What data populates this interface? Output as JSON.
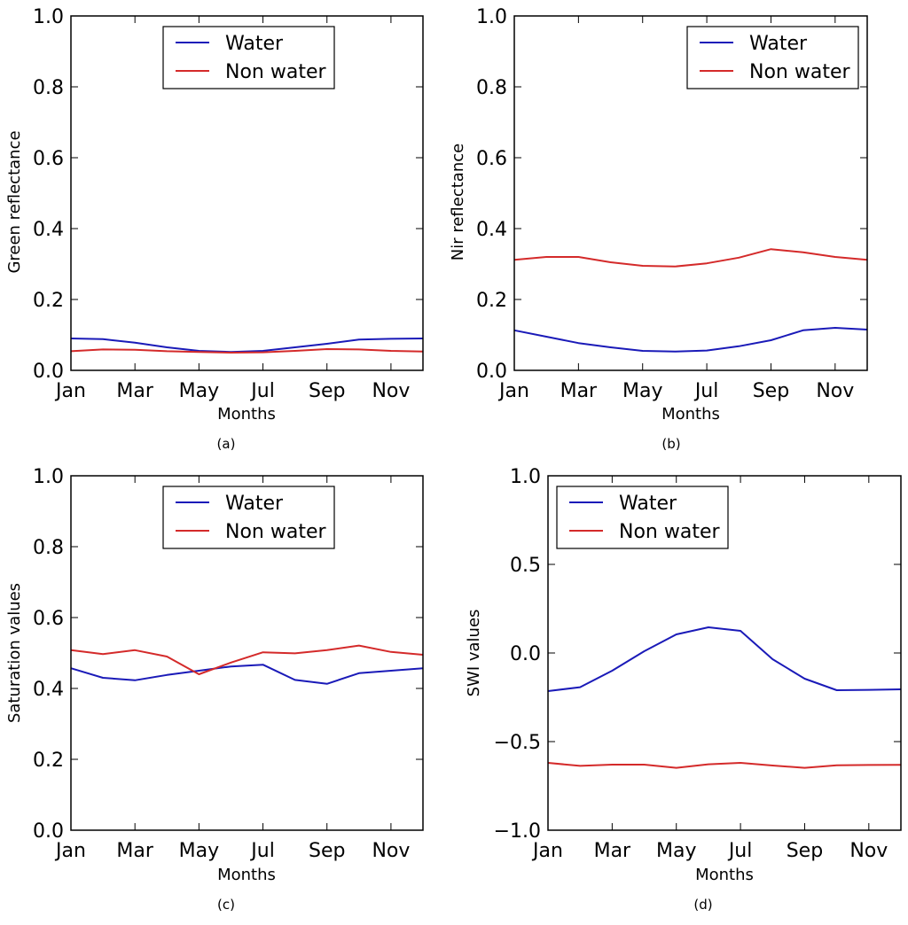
{
  "colors": {
    "water": "#1a1ab8",
    "non_water": "#d42a2a"
  },
  "chart_data": [
    {
      "type": "line",
      "caption": "(a)",
      "title": "",
      "xlabel": "Months",
      "ylabel": "Green reflectance",
      "x": [
        0,
        1,
        2,
        3,
        4,
        5,
        6,
        7,
        8,
        9,
        10,
        11
      ],
      "xlim": [
        0,
        11
      ],
      "xticks": [
        0,
        2,
        4,
        6,
        8,
        10
      ],
      "xtick_labels": [
        "Jan",
        "Mar",
        "May",
        "Jul",
        "Sep",
        "Nov"
      ],
      "ylim": [
        0.0,
        1.0
      ],
      "yticks": [
        0.0,
        0.2,
        0.4,
        0.6,
        0.8,
        1.0
      ],
      "ytick_labels": [
        "0.0",
        "0.2",
        "0.4",
        "0.6",
        "0.8",
        "1.0"
      ],
      "legend_position": "top-center",
      "series": [
        {
          "name": "Water",
          "color_key": "water",
          "values": [
            0.09,
            0.088,
            0.078,
            0.065,
            0.055,
            0.052,
            0.055,
            0.065,
            0.075,
            0.087,
            0.089,
            0.09
          ]
        },
        {
          "name": "Non water",
          "color_key": "non_water",
          "values": [
            0.054,
            0.059,
            0.058,
            0.054,
            0.052,
            0.05,
            0.051,
            0.055,
            0.06,
            0.059,
            0.055,
            0.053
          ]
        }
      ]
    },
    {
      "type": "line",
      "caption": "(b)",
      "title": "",
      "xlabel": "Months",
      "ylabel": "Nir reflectance",
      "x": [
        0,
        1,
        2,
        3,
        4,
        5,
        6,
        7,
        8,
        9,
        10,
        11
      ],
      "xlim": [
        0,
        11
      ],
      "xticks": [
        0,
        2,
        4,
        6,
        8,
        10
      ],
      "xtick_labels": [
        "Jan",
        "Mar",
        "May",
        "Jul",
        "Sep",
        "Nov"
      ],
      "ylim": [
        0.0,
        1.0
      ],
      "yticks": [
        0.0,
        0.2,
        0.4,
        0.6,
        0.8,
        1.0
      ],
      "ytick_labels": [
        "0.0",
        "0.2",
        "0.4",
        "0.6",
        "0.8",
        "1.0"
      ],
      "legend_position": "top-right",
      "series": [
        {
          "name": "Water",
          "color_key": "water",
          "values": [
            0.113,
            0.095,
            0.077,
            0.065,
            0.055,
            0.053,
            0.056,
            0.068,
            0.085,
            0.113,
            0.12,
            0.115
          ]
        },
        {
          "name": "Non water",
          "color_key": "non_water",
          "values": [
            0.312,
            0.32,
            0.32,
            0.305,
            0.295,
            0.293,
            0.302,
            0.318,
            0.342,
            0.333,
            0.32,
            0.312
          ]
        }
      ]
    },
    {
      "type": "line",
      "caption": "(c)",
      "title": "",
      "xlabel": "Months",
      "ylabel": "Saturation values",
      "x": [
        0,
        1,
        2,
        3,
        4,
        5,
        6,
        7,
        8,
        9,
        10,
        11
      ],
      "xlim": [
        0,
        11
      ],
      "xticks": [
        0,
        2,
        4,
        6,
        8,
        10
      ],
      "xtick_labels": [
        "Jan",
        "Mar",
        "May",
        "Jul",
        "Sep",
        "Nov"
      ],
      "ylim": [
        0.0,
        1.0
      ],
      "yticks": [
        0.0,
        0.2,
        0.4,
        0.6,
        0.8,
        1.0
      ],
      "ytick_labels": [
        "0.0",
        "0.2",
        "0.4",
        "0.6",
        "0.8",
        "1.0"
      ],
      "legend_position": "top-center",
      "series": [
        {
          "name": "Water",
          "color_key": "water",
          "values": [
            0.457,
            0.43,
            0.423,
            0.438,
            0.45,
            0.462,
            0.467,
            0.424,
            0.413,
            0.443,
            0.45,
            0.457
          ]
        },
        {
          "name": "Non water",
          "color_key": "non_water",
          "values": [
            0.508,
            0.497,
            0.508,
            0.49,
            0.44,
            0.473,
            0.502,
            0.499,
            0.508,
            0.521,
            0.503,
            0.495
          ]
        }
      ]
    },
    {
      "type": "line",
      "caption": "(d)",
      "title": "",
      "xlabel": "Months",
      "ylabel": "SWI values",
      "x": [
        0,
        1,
        2,
        3,
        4,
        5,
        6,
        7,
        8,
        9,
        10,
        11
      ],
      "xlim": [
        0,
        11
      ],
      "xticks": [
        0,
        2,
        4,
        6,
        8,
        10
      ],
      "xtick_labels": [
        "Jan",
        "Mar",
        "May",
        "Jul",
        "Sep",
        "Nov"
      ],
      "ylim": [
        -1.0,
        1.0
      ],
      "yticks": [
        -1.0,
        -0.5,
        0.0,
        0.5,
        1.0
      ],
      "ytick_labels": [
        "−1.0",
        "−0.5",
        "0.0",
        "0.5",
        "1.0"
      ],
      "legend_position": "top-left",
      "series": [
        {
          "name": "Water",
          "color_key": "water",
          "values": [
            -0.215,
            -0.193,
            -0.1,
            0.01,
            0.105,
            0.145,
            0.125,
            -0.035,
            -0.145,
            -0.21,
            -0.208,
            -0.205
          ]
        },
        {
          "name": "Non water",
          "color_key": "non_water",
          "values": [
            -0.62,
            -0.637,
            -0.63,
            -0.63,
            -0.648,
            -0.628,
            -0.62,
            -0.635,
            -0.648,
            -0.634,
            -0.632,
            -0.631
          ]
        }
      ]
    }
  ]
}
